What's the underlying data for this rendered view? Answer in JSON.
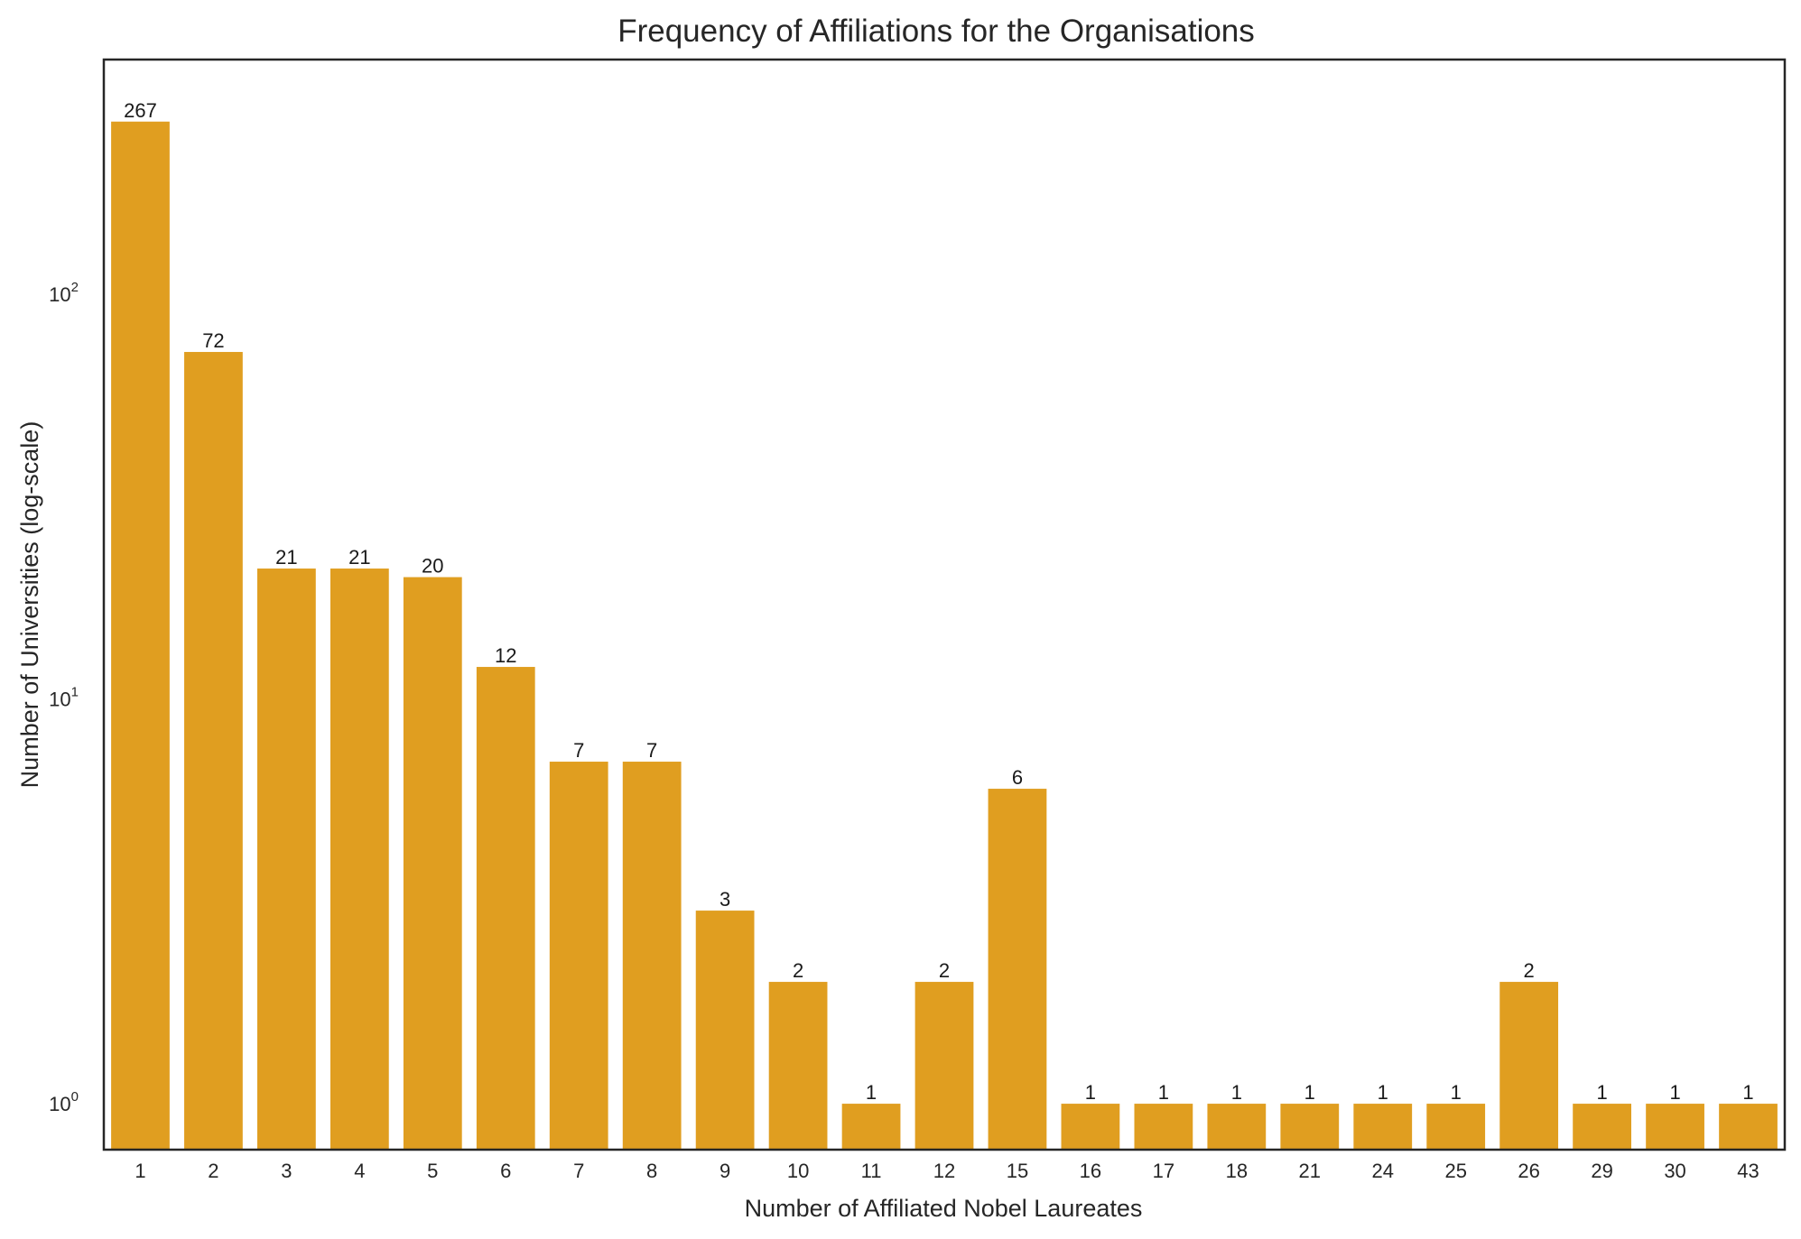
{
  "chart_data": {
    "type": "bar",
    "title": "Frequency of Affiliations for the Organisations",
    "xlabel": "Number of Affiliated Nobel Laureates",
    "ylabel": "Number of Universities (log-scale)",
    "y_scale": "log",
    "ylim": [
      0.77,
      380
    ],
    "y_ticks": [
      {
        "base": "10",
        "exp": "0",
        "value": 1
      },
      {
        "base": "10",
        "exp": "1",
        "value": 10
      },
      {
        "base": "10",
        "exp": "2",
        "value": 100
      }
    ],
    "grid": false,
    "color": "#e09e20",
    "categories": [
      "1",
      "2",
      "3",
      "4",
      "5",
      "6",
      "7",
      "8",
      "9",
      "10",
      "11",
      "12",
      "15",
      "16",
      "17",
      "18",
      "21",
      "24",
      "25",
      "26",
      "29",
      "30",
      "43"
    ],
    "values": [
      267,
      72,
      21,
      21,
      20,
      12,
      7,
      7,
      3,
      2,
      1,
      2,
      6,
      1,
      1,
      1,
      1,
      1,
      1,
      2,
      1,
      1,
      1
    ],
    "data_labels": [
      "267",
      "72",
      "21",
      "21",
      "20",
      "12",
      "7",
      "7",
      "3",
      "2",
      "1",
      "2",
      "6",
      "1",
      "1",
      "1",
      "1",
      "1",
      "1",
      "2",
      "1",
      "1",
      "1"
    ]
  }
}
